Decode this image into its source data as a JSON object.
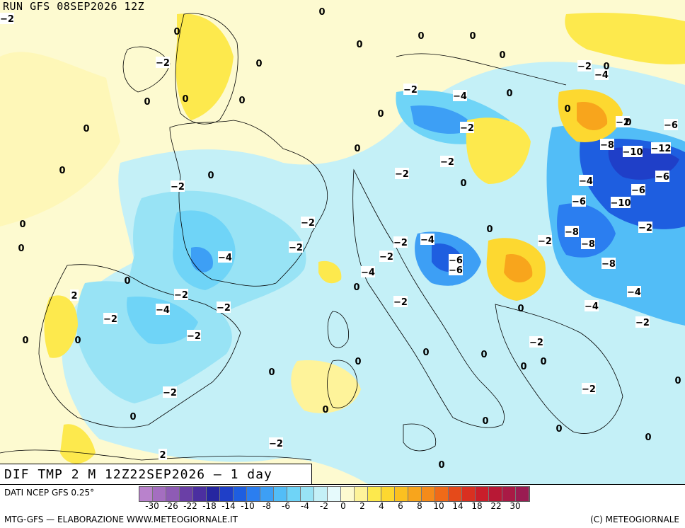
{
  "header": {
    "run_label": "RUN GFS 08SEP2026 12Z"
  },
  "footer": {
    "title": "DIF TMP 2 M 12Z22SEP2026 — 1 day",
    "data_source": "DATI NCEP GFS 0.25°",
    "credit_left": "MTG-GFS — ELABORAZIONE WWW.METEOGIORNALE.IT",
    "credit_right": "(C) METEOGIORNALE"
  },
  "legend": {
    "colors": [
      "#b982cc",
      "#a46ec0",
      "#8e5bb5",
      "#6a3fa6",
      "#4b2fa0",
      "#2626a0",
      "#1f3fc8",
      "#1e5ee0",
      "#2b7ef0",
      "#3d9ff5",
      "#52bdf7",
      "#6fd4f7",
      "#98e3f5",
      "#c4f0f7",
      "#e6fafc",
      "#fdfad0",
      "#fef39a",
      "#fde94d",
      "#fdd830",
      "#fbc020",
      "#f8a51c",
      "#f58b1a",
      "#f06a18",
      "#e54a1a",
      "#d93020",
      "#c91e2a",
      "#b81835",
      "#a91a45",
      "#9a1c52"
    ],
    "tick_labels": [
      "-30",
      "-26",
      "-22",
      "-18",
      "-14",
      "-10",
      "-8",
      "-6",
      "-4",
      "-2",
      "0",
      "2",
      "4",
      "6",
      "8",
      "10",
      "14",
      "18",
      "22",
      "30"
    ]
  },
  "map_values": [
    "-2",
    "-2",
    "0",
    "0",
    "0",
    "0",
    "0",
    "0",
    "-2",
    "0",
    "-4",
    "0",
    "-2",
    "0",
    "0",
    "0",
    "0",
    "-2",
    "-4",
    "0",
    "0",
    "-2",
    "0",
    "0",
    "-2",
    "-2",
    "0",
    "-6",
    "-2",
    "0",
    "-8",
    "-10",
    "-12",
    "-6",
    "0",
    "-2",
    "-4",
    "0",
    "-2",
    "-8",
    "-4",
    "-6",
    "-2",
    "-6",
    "-10",
    "0",
    "-2",
    "-2",
    "-4",
    "-8",
    "-6",
    "0",
    "-2",
    "-4",
    "-6",
    "-2",
    "-8",
    "-2",
    "-2",
    "-4",
    "0",
    "-4",
    "-2",
    "-4",
    "-2",
    "0",
    "-2",
    "2",
    "0",
    "0",
    "-2",
    "0",
    "0",
    "0",
    "0",
    "-2",
    "0",
    "0",
    "-2",
    "0",
    "0",
    "0",
    "-2",
    "0",
    "0",
    "0",
    "0",
    "0",
    "2",
    "-2",
    "0"
  ]
}
